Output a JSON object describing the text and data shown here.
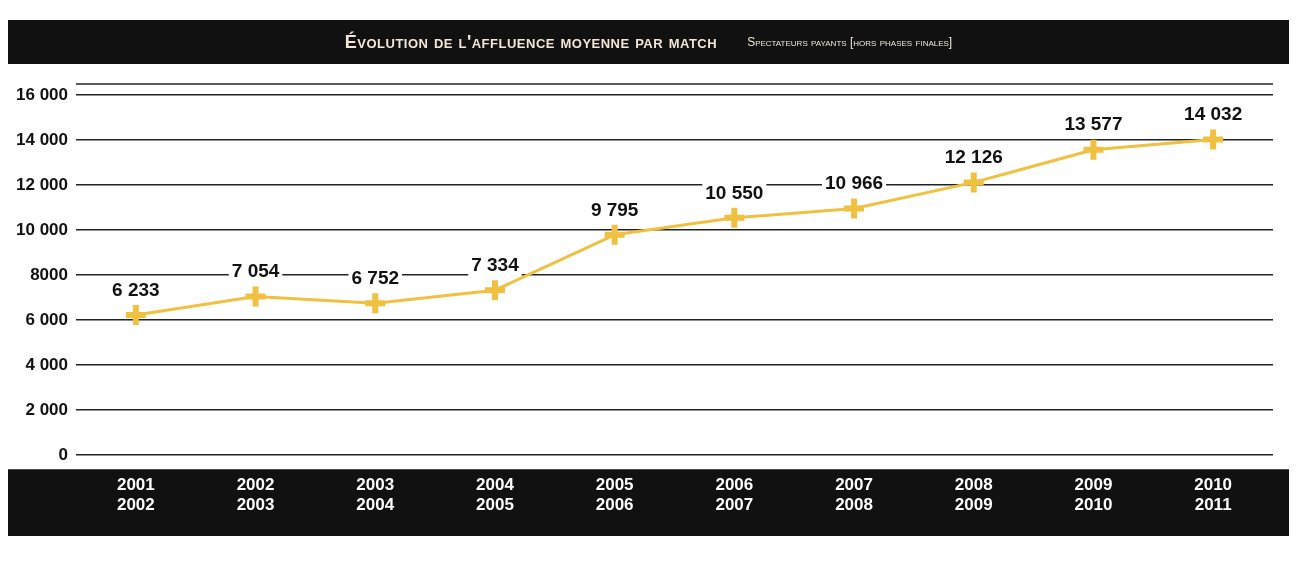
{
  "chart_data": {
    "type": "line",
    "title": "Évolution de l'affluence moyenne par match",
    "subtitle": "Spectateurs payants [hors phases finales]",
    "categories": [
      "2001\n2002",
      "2002\n2003",
      "2003\n2004",
      "2004\n2005",
      "2005\n2006",
      "2006\n2007",
      "2007\n2008",
      "2008\n2009",
      "2009\n2010",
      "2010\n2011"
    ],
    "series": [
      {
        "color": "#f0c040",
        "values": [
          6233,
          7054,
          6752,
          7334,
          9795,
          10550,
          10966,
          12126,
          13577,
          14032
        ],
        "value_labels": [
          "6 233",
          "7 054",
          "6 752",
          "7 334",
          "9 795",
          "10 550",
          "10 966",
          "12 126",
          "13 577",
          "14 032"
        ]
      }
    ],
    "ylim": [
      0,
      16500
    ],
    "yticks": [
      0,
      {
        "value": 2000,
        "label": "2 000"
      },
      {
        "value": 4000,
        "label": "4 000"
      },
      {
        "value": 6000,
        "label": "6 000"
      },
      8000,
      {
        "value": 10000,
        "label": "10 000"
      },
      {
        "value": 12000,
        "label": "12 000"
      },
      {
        "value": 14000,
        "label": "14 000"
      },
      {
        "value": 16000,
        "label": "16 000"
      }
    ],
    "grid": "y",
    "legend": false,
    "marker": "cross",
    "line_style": "solid"
  }
}
